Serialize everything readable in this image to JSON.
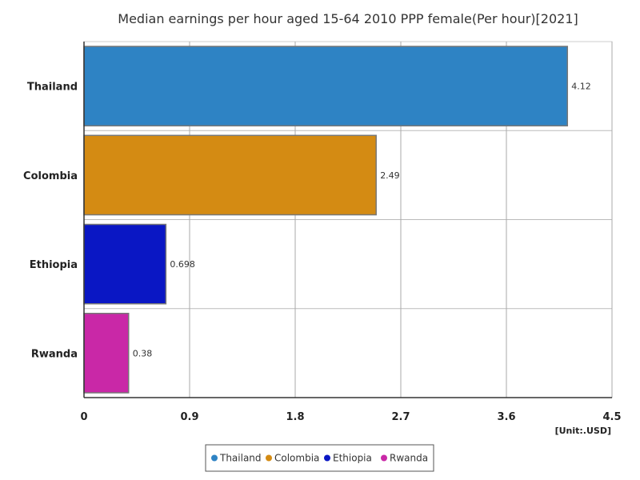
{
  "chart_data": {
    "type": "bar",
    "orientation": "horizontal",
    "title": "Median earnings per hour aged 15-64 2010 PPP female(Per hour)[2021]",
    "categories": [
      "Thailand",
      "Colombia",
      "Ethiopia",
      "Rwanda"
    ],
    "values": [
      4.12,
      2.49,
      0.698,
      0.38
    ],
    "value_labels": [
      "4.12",
      "2.49",
      "0.698",
      "0.38"
    ],
    "colors": [
      "#2e83c4",
      "#d48b13",
      "#0a17c4",
      "#c928a7"
    ],
    "xlim": [
      0,
      4.5
    ],
    "x_ticks": [
      0,
      0.9,
      1.8,
      2.7,
      3.6,
      4.5
    ],
    "x_tick_labels": [
      "0",
      "0.9",
      "1.8",
      "2.7",
      "3.6",
      "4.5"
    ],
    "unit": "[Unit:.USD]",
    "grid": true,
    "legend": {
      "placement": "bottom-center",
      "entries": [
        "Thailand",
        "Colombia",
        "Ethiopia",
        "Rwanda"
      ]
    }
  }
}
